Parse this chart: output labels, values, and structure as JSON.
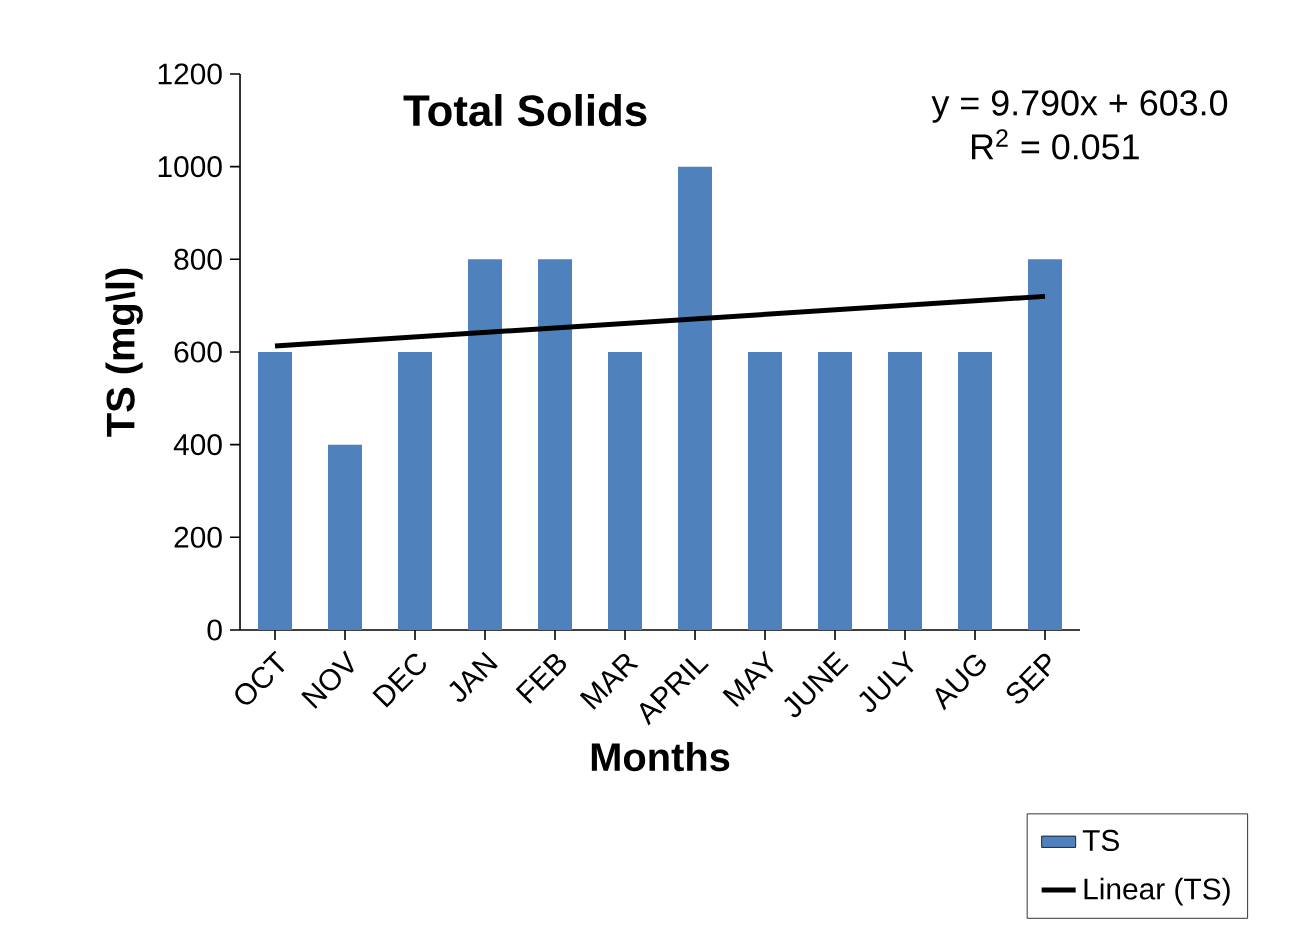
{
  "chart_data": {
    "type": "bar",
    "title": "Total  Solids",
    "xlabel": "Months",
    "ylabel": "TS (mg\\l)",
    "categories": [
      "OCT",
      "NOV",
      "DEC",
      "JAN",
      "FEB",
      "MAR",
      "APRIL",
      "MAY",
      "JUNE",
      "JULY",
      "AUG",
      "SEP"
    ],
    "series": [
      {
        "name": "TS",
        "color": "#4f81bd",
        "values": [
          600,
          400,
          600,
          800,
          800,
          600,
          1000,
          600,
          600,
          600,
          600,
          800
        ]
      },
      {
        "name": "Linear (TS)",
        "type": "line",
        "color": "#000000",
        "x": [
          "OCT",
          "SEP"
        ],
        "values": [
          613,
          720
        ]
      }
    ],
    "ylim": [
      0,
      1200
    ],
    "yticks": [
      0,
      200,
      400,
      600,
      800,
      1000,
      1200
    ],
    "annotations": [
      "y = 9.790x + 603.0",
      "R$^{2}$ = 0.051"
    ],
    "legend": "bottom right",
    "grid": false
  }
}
